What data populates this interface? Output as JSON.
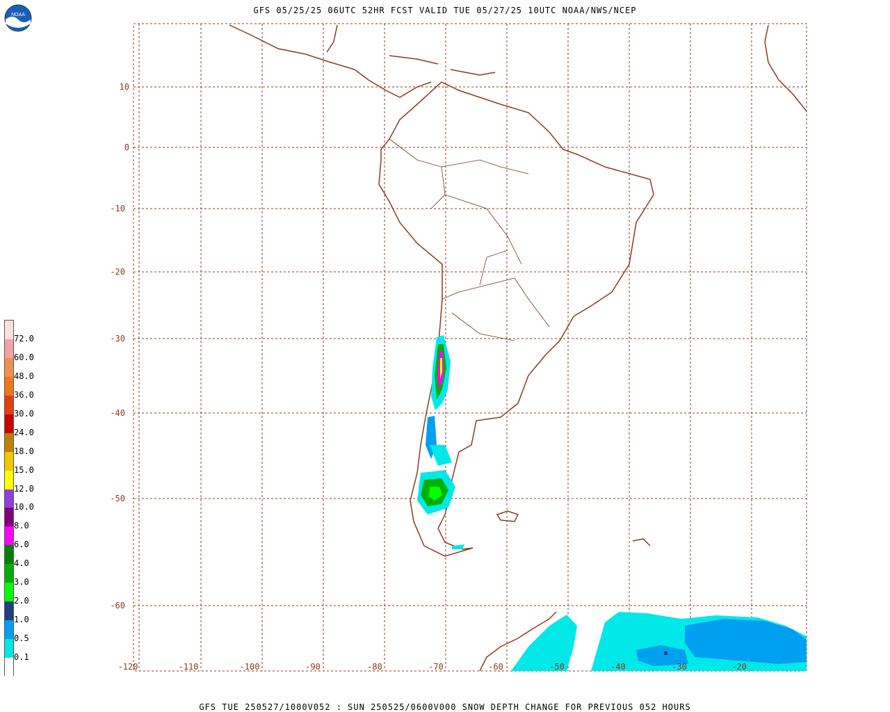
{
  "header": {
    "title": "GFS 05/25/25 06UTC 52HR FCST VALID TUE 05/27/25 10UTC NOAA/NWS/NCEP"
  },
  "footer": {
    "caption": "GFS TUE 250527/1000V052 : SUN 250525/0600V000 SNOW DEPTH CHANGE FOR PREVIOUS 052 HOURS"
  },
  "logo": {
    "text": "NOAA",
    "icon": "noaa-logo-icon"
  },
  "map": {
    "coastline_color": "#8a3c1c",
    "border_color": "#6b3a1f",
    "grid_color": "#8a3c1c",
    "lon_labels": [
      "-120",
      "-110",
      "-100",
      "-90",
      "-80",
      "-70",
      "-60",
      "-50",
      "-40",
      "-30",
      "-20"
    ],
    "lat_labels": [
      "10",
      "0",
      "-10",
      "-20",
      "-30",
      "-40",
      "-50",
      "-60"
    ]
  },
  "legend": {
    "labels": [
      "72.0",
      "60.0",
      "48.0",
      "36.0",
      "30.0",
      "24.0",
      "18.0",
      "15.0",
      "12.0",
      "10.0",
      "8.0",
      "6.0",
      "4.0",
      "3.0",
      "2.0",
      "1.0",
      "0.5",
      "0.1"
    ],
    "colors": [
      "#ffe0e0",
      "#f5a0a8",
      "#f09050",
      "#f07818",
      "#e04010",
      "#c80000",
      "#c08000",
      "#f0c800",
      "#ffff00",
      "#9040e0",
      "#800080",
      "#ff00ff",
      "#008000",
      "#00b000",
      "#00ff00",
      "#204080",
      "#00a0f0",
      "#00e8e8",
      "#ffffff"
    ]
  }
}
